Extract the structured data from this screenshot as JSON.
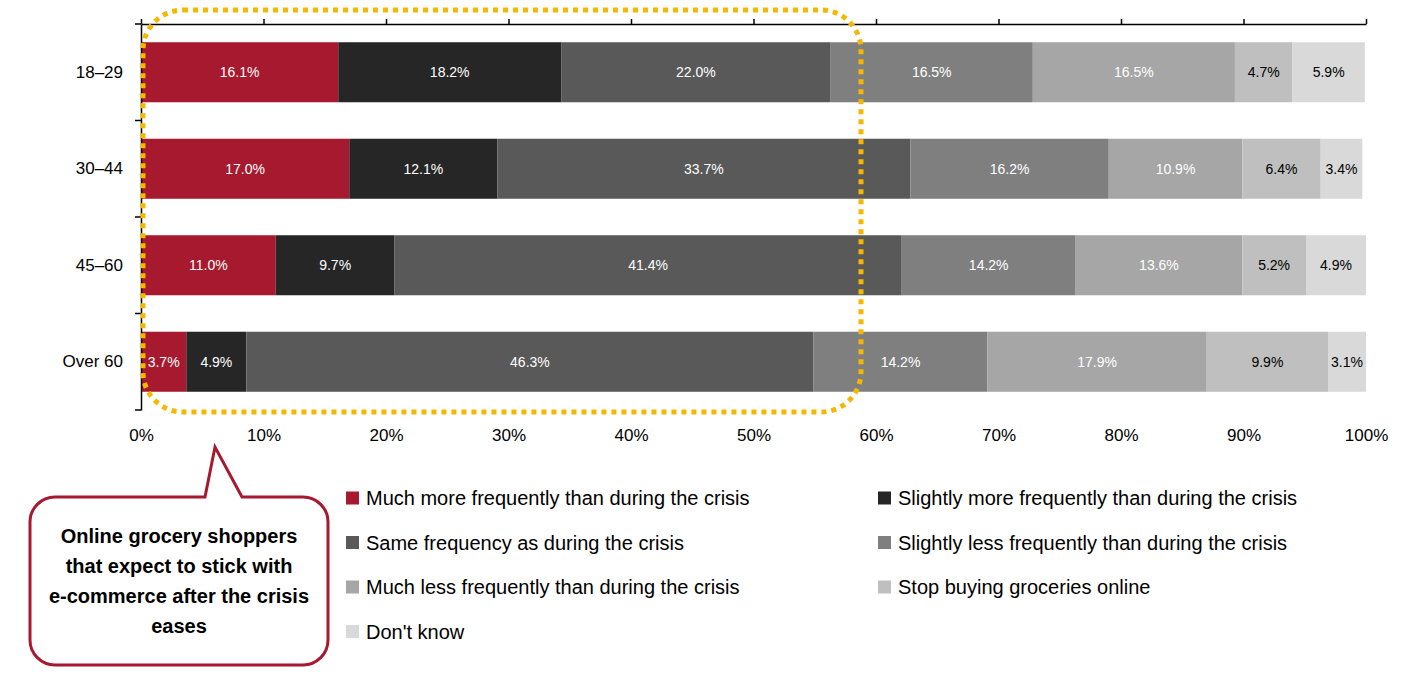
{
  "chart_data": {
    "type": "bar",
    "orientation": "horizontal",
    "stacked": true,
    "data_labels": true,
    "grid": false,
    "legend": "bottom",
    "categories": [
      "18–29",
      "30–44",
      "45–60",
      "Over 60"
    ],
    "xlim": [
      0,
      100
    ],
    "xticks": [
      {
        "value": 0,
        "label": "0%"
      },
      {
        "value": 10,
        "label": "10%"
      },
      {
        "value": 20,
        "label": "20%"
      },
      {
        "value": 30,
        "label": "30%"
      },
      {
        "value": 40,
        "label": "40%"
      },
      {
        "value": 50,
        "label": "50%"
      },
      {
        "value": 60,
        "label": "60%"
      },
      {
        "value": 70,
        "label": "70%"
      },
      {
        "value": 80,
        "label": "80%"
      },
      {
        "value": 90,
        "label": "90%"
      },
      {
        "value": 100,
        "label": "100%"
      }
    ],
    "series": [
      {
        "name": "Much more frequently than during the crisis",
        "color": "#a6192e",
        "values": [
          16.1,
          17.0,
          11.0,
          3.7
        ],
        "value_labels": [
          "16.1%",
          "17.0%",
          "11.0%",
          "3.7%"
        ]
      },
      {
        "name": "Slightly more frequently than during the crisis",
        "color": "#262626",
        "values": [
          18.2,
          12.1,
          9.7,
          4.9
        ],
        "value_labels": [
          "18.2%",
          "12.1%",
          "9.7%",
          "4.9%"
        ]
      },
      {
        "name": "Same frequency as during the crisis",
        "color": "#595959",
        "values": [
          22.0,
          33.7,
          41.4,
          46.3
        ],
        "value_labels": [
          "22.0%",
          "33.7%",
          "41.4%",
          "46.3%"
        ]
      },
      {
        "name": "Slightly less frequently than during the crisis",
        "color": "#7f7f7f",
        "values": [
          16.5,
          16.2,
          14.2,
          14.2
        ],
        "value_labels": [
          "16.5%",
          "16.2%",
          "14.2%",
          "14.2%"
        ]
      },
      {
        "name": "Much less frequently than during the crisis",
        "color": "#a6a6a6",
        "values": [
          16.5,
          10.9,
          13.6,
          17.9
        ],
        "value_labels": [
          "16.5%",
          "10.9%",
          "13.6%",
          "17.9%"
        ]
      },
      {
        "name": "Stop buying groceries online",
        "color": "#bfbfbf",
        "values": [
          4.7,
          6.4,
          5.2,
          9.9
        ],
        "value_labels": [
          "4.7%",
          "6.4%",
          "5.2%",
          "9.9%"
        ]
      },
      {
        "name": "Don't know",
        "color": "#d9d9d9",
        "values": [
          5.9,
          3.4,
          4.9,
          3.1
        ],
        "value_labels": [
          "5.9%",
          "3.4%",
          "4.9%",
          "3.1%"
        ]
      }
    ],
    "annotations": [
      "Online grocery shoppers that expect to stick with e-commerce after the crisis eases"
    ]
  }
}
